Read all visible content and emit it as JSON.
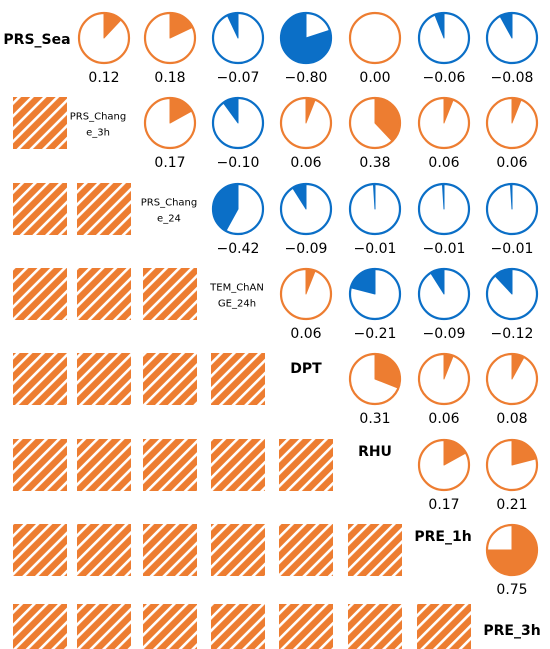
{
  "chart_data": {
    "type": "heatmap",
    "subtype": "correlation-pie-matrix",
    "variables": [
      "PRS_Sea",
      "PRS_Change_3h",
      "PRS_Change_24",
      "TEM_ChANGE_24h",
      "DPT",
      "RHU",
      "PRE_1h",
      "PRE_3h"
    ],
    "diagonal_labels": [
      [
        "PRS_Sea"
      ],
      [
        "PRS_Chang",
        "e_3h"
      ],
      [
        "PRS_Chang",
        "e_24"
      ],
      [
        "TEM_ChAN",
        "GE_24h"
      ],
      [
        "DPT"
      ],
      [
        "RHU"
      ],
      [
        "PRE_1h"
      ],
      [
        "PRE_3h"
      ]
    ],
    "upper_values": [
      [
        0.12,
        0.18,
        -0.07,
        -0.8,
        0.0,
        -0.06,
        -0.08
      ],
      [
        0.17,
        -0.1,
        0.06,
        0.38,
        0.06,
        0.06
      ],
      [
        -0.42,
        -0.09,
        -0.01,
        -0.01,
        -0.01
      ],
      [
        0.06,
        -0.21,
        -0.09,
        -0.12
      ],
      [
        0.31,
        0.06,
        0.08
      ],
      [
        0.17,
        0.21
      ],
      [
        0.75
      ]
    ],
    "value_labels": [
      [
        "0.12",
        "0.18",
        "−0.07",
        "−0.80",
        "0.00",
        "−0.06",
        "−0.08"
      ],
      [
        "0.17",
        "−0.10",
        "0.06",
        "0.38",
        "0.06",
        "0.06"
      ],
      [
        "−0.42",
        "−0.09",
        "−0.01",
        "−0.01",
        "−0.01"
      ],
      [
        "0.06",
        "−0.21",
        "−0.09",
        "−0.12"
      ],
      [
        "0.31",
        "0.06",
        "0.08"
      ],
      [
        "0.17",
        "0.21"
      ],
      [
        "0.75"
      ]
    ],
    "colors": {
      "positive": "#ED7D31",
      "negative": "#0B6FC7",
      "lower_hatch": "#ED7D31",
      "label": "#000000"
    }
  }
}
